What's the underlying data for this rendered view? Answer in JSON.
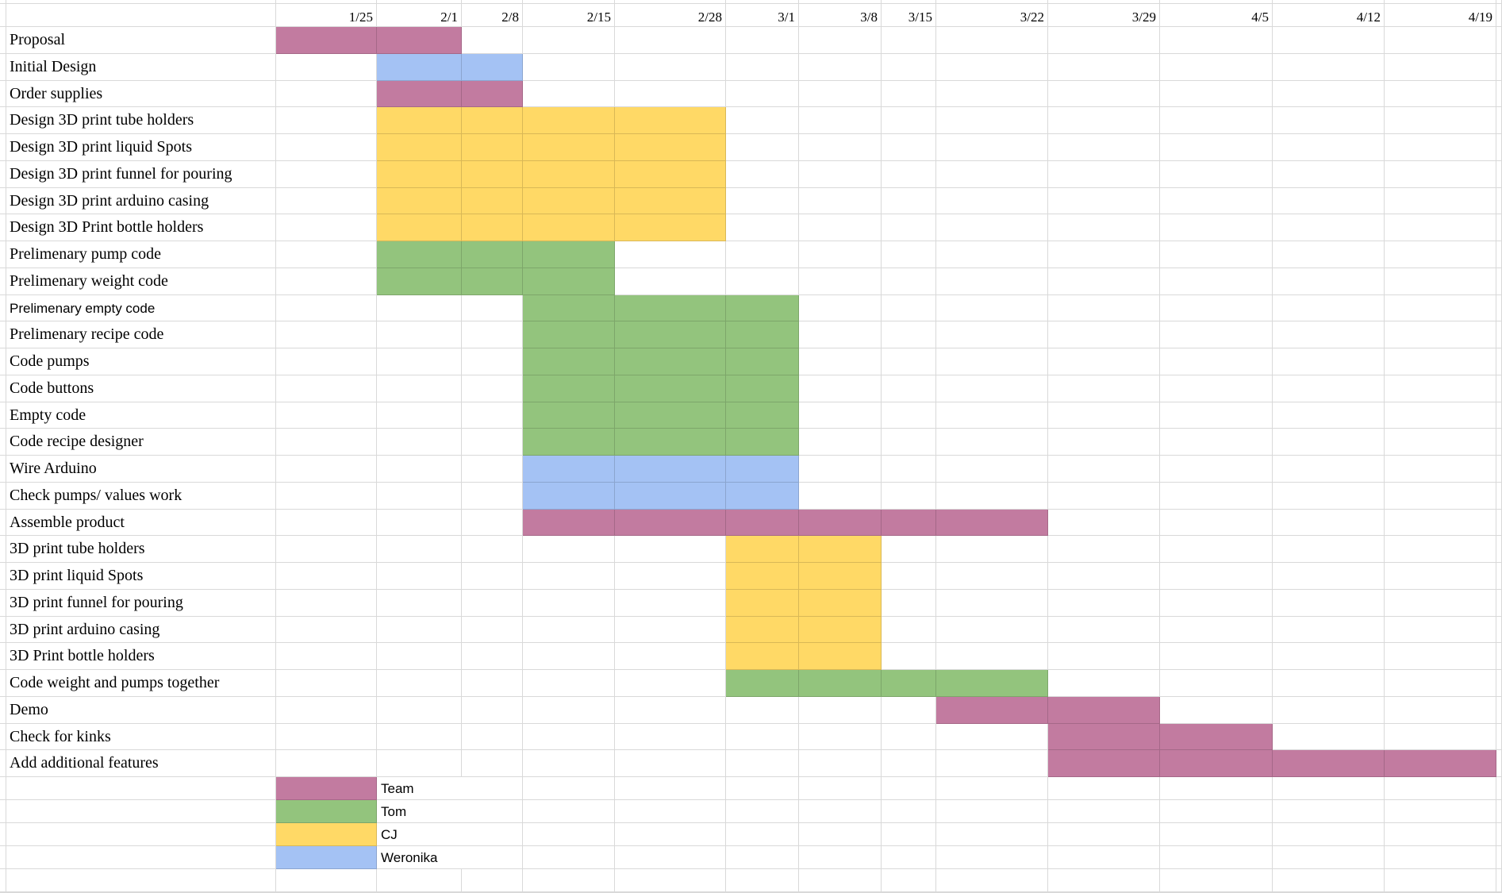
{
  "dates": [
    "1/25",
    "2/1",
    "2/8",
    "2/15",
    "2/28",
    "3/1",
    "3/8",
    "3/15",
    "3/22",
    "3/29",
    "4/5",
    "4/12",
    "4/19"
  ],
  "colors": {
    "Team": "#c27ba0",
    "Tom": "#93c47d",
    "CJ": "#ffd966",
    "Weronika": "#a4c2f4"
  },
  "tasks": [
    {
      "name": "Proposal",
      "start": "1/25",
      "end": "2/1",
      "owner": "Team"
    },
    {
      "name": "Initial Design",
      "start": "2/1",
      "end": "2/8",
      "owner": "Weronika"
    },
    {
      "name": "Order supplies",
      "start": "2/1",
      "end": "2/8",
      "owner": "Team"
    },
    {
      "name": "Design 3D print tube holders",
      "start": "2/1",
      "end": "2/28",
      "owner": "CJ"
    },
    {
      "name": "Design 3D print liquid Spots",
      "start": "2/1",
      "end": "2/28",
      "owner": "CJ"
    },
    {
      "name": "Design 3D print funnel for pouring",
      "start": "2/1",
      "end": "2/28",
      "owner": "CJ"
    },
    {
      "name": "Design 3D print arduino casing",
      "start": "2/1",
      "end": "2/28",
      "owner": "CJ"
    },
    {
      "name": "Design 3D Print bottle holders",
      "start": "2/1",
      "end": "2/28",
      "owner": "CJ"
    },
    {
      "name": "Prelimenary pump code",
      "start": "2/1",
      "end": "2/15",
      "owner": "Tom"
    },
    {
      "name": "Prelimenary weight code",
      "start": "2/1",
      "end": "2/15",
      "owner": "Tom"
    },
    {
      "name": "Prelimenary empty code",
      "start": "2/15",
      "end": "3/1",
      "owner": "Tom",
      "sans": true
    },
    {
      "name": "Prelimenary recipe code",
      "start": "2/15",
      "end": "3/1",
      "owner": "Tom"
    },
    {
      "name": "Code pumps",
      "start": "2/15",
      "end": "3/1",
      "owner": "Tom"
    },
    {
      "name": "Code buttons",
      "start": "2/15",
      "end": "3/1",
      "owner": "Tom"
    },
    {
      "name": "Empty code",
      "start": "2/15",
      "end": "3/1",
      "owner": "Tom"
    },
    {
      "name": "Code recipe designer",
      "start": "2/15",
      "end": "3/1",
      "owner": "Tom"
    },
    {
      "name": "Wire Arduino",
      "start": "2/15",
      "end": "3/1",
      "owner": "Weronika"
    },
    {
      "name": "Check pumps/ values work",
      "start": "2/15",
      "end": "3/1",
      "owner": "Weronika"
    },
    {
      "name": "Assemble product",
      "start": "2/15",
      "end": "3/22",
      "owner": "Team"
    },
    {
      "name": "3D print tube holders",
      "start": "3/1",
      "end": "3/8",
      "owner": "CJ"
    },
    {
      "name": "3D print liquid Spots",
      "start": "3/1",
      "end": "3/8",
      "owner": "CJ"
    },
    {
      "name": "3D print funnel for pouring",
      "start": "3/1",
      "end": "3/8",
      "owner": "CJ"
    },
    {
      "name": "3D print arduino casing",
      "start": "3/1",
      "end": "3/8",
      "owner": "CJ"
    },
    {
      "name": "3D Print bottle holders",
      "start": "3/1",
      "end": "3/8",
      "owner": "CJ"
    },
    {
      "name": "Code weight and pumps together",
      "start": "3/1",
      "end": "3/22",
      "owner": "Tom"
    },
    {
      "name": "Demo",
      "start": "3/22",
      "end": "3/29",
      "owner": "Team"
    },
    {
      "name": "Check for kinks",
      "start": "3/29",
      "end": "4/5",
      "owner": "Team"
    },
    {
      "name": "Add additional features",
      "start": "3/29",
      "end": "4/19",
      "owner": "Team"
    }
  ],
  "legend": [
    "Team",
    "Tom",
    "CJ",
    "Weronika"
  ]
}
